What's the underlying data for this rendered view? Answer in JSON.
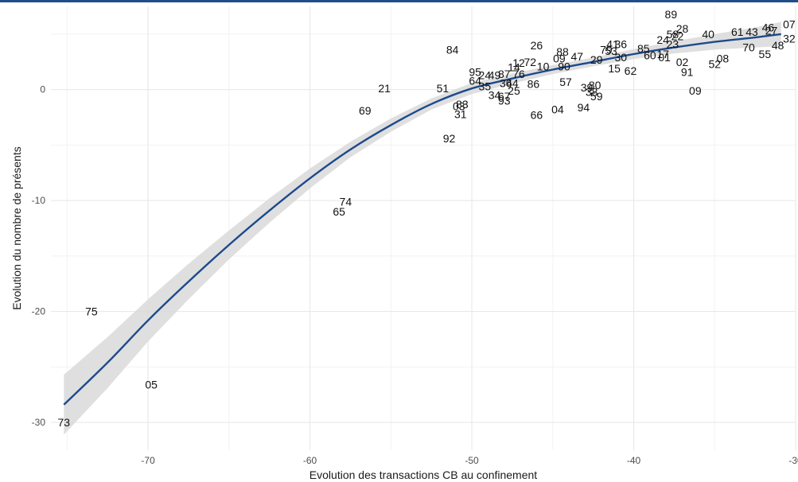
{
  "chart_data": {
    "type": "scatter",
    "title": "",
    "xlabel": "Evolution des transactions CB au confinement",
    "ylabel": "Evolution du nombre de présents",
    "xlim": [
      -76,
      -30
    ],
    "ylim": [
      -32.5,
      7.5
    ],
    "x_ticks": [
      -70,
      -60,
      -50,
      -40,
      -30
    ],
    "y_ticks": [
      0,
      -10,
      -20,
      -30
    ],
    "x_tick_labels": [
      "-70",
      "-60",
      "-50",
      "-40",
      "-30"
    ],
    "y_tick_labels": [
      "0",
      "-10",
      "-20",
      "-30"
    ],
    "grid": true,
    "legend": "none",
    "colors": {
      "line": "#1c4a8c",
      "band": "#d9d9d9",
      "grid_major": "#e6e6e6",
      "grid_minor": "#f2f2f2",
      "topbar": "#1f4e8c"
    },
    "points": [
      {
        "label": "73",
        "x": -75.2,
        "y": -30.0
      },
      {
        "label": "75",
        "x": -73.5,
        "y": -20.0
      },
      {
        "label": "05",
        "x": -69.8,
        "y": -26.6
      },
      {
        "label": "65",
        "x": -58.2,
        "y": -11.0
      },
      {
        "label": "74",
        "x": -57.8,
        "y": -10.1
      },
      {
        "label": "69",
        "x": -56.6,
        "y": -1.9
      },
      {
        "label": "21",
        "x": -55.4,
        "y": 0.1
      },
      {
        "label": "51",
        "x": -51.8,
        "y": 0.1
      },
      {
        "label": "92",
        "x": -51.4,
        "y": -4.4
      },
      {
        "label": "84",
        "x": -51.2,
        "y": 3.6
      },
      {
        "label": "31",
        "x": -50.7,
        "y": -2.2
      },
      {
        "label": "03",
        "x": -50.8,
        "y": -1.5
      },
      {
        "label": "83",
        "x": -50.6,
        "y": -1.3
      },
      {
        "label": "95",
        "x": -49.8,
        "y": 1.6
      },
      {
        "label": "64",
        "x": -49.8,
        "y": 0.8
      },
      {
        "label": "24",
        "x": -49.2,
        "y": 1.3
      },
      {
        "label": "49",
        "x": -48.6,
        "y": 1.3
      },
      {
        "label": "35",
        "x": -49.2,
        "y": 0.3
      },
      {
        "label": "34",
        "x": -48.6,
        "y": -0.5
      },
      {
        "label": "67",
        "x": -48.0,
        "y": -0.6
      },
      {
        "label": "93",
        "x": -48.0,
        "y": -1.0
      },
      {
        "label": "87",
        "x": -48.0,
        "y": 1.4
      },
      {
        "label": "36",
        "x": -47.9,
        "y": 0.6
      },
      {
        "label": "44",
        "x": -47.5,
        "y": 0.6
      },
      {
        "label": "25",
        "x": -47.4,
        "y": -0.1
      },
      {
        "label": "14",
        "x": -47.4,
        "y": 2.0
      },
      {
        "label": "12",
        "x": -47.1,
        "y": 2.4
      },
      {
        "label": "76",
        "x": -47.1,
        "y": 1.4
      },
      {
        "label": "72",
        "x": -46.4,
        "y": 2.5
      },
      {
        "label": "86",
        "x": -46.2,
        "y": 0.5
      },
      {
        "label": "66",
        "x": -46.0,
        "y": -2.3
      },
      {
        "label": "10",
        "x": -45.6,
        "y": 2.1
      },
      {
        "label": "26",
        "x": -46.0,
        "y": 4.0
      },
      {
        "label": "04",
        "x": -44.7,
        "y": -1.8
      },
      {
        "label": "09",
        "x": -44.6,
        "y": 2.8
      },
      {
        "label": "88",
        "x": -44.4,
        "y": 3.4
      },
      {
        "label": "90",
        "x": -44.3,
        "y": 2.1
      },
      {
        "label": "57",
        "x": -44.2,
        "y": 0.7
      },
      {
        "label": "47",
        "x": -43.5,
        "y": 3.0
      },
      {
        "label": "94",
        "x": -43.1,
        "y": -1.6
      },
      {
        "label": "39",
        "x": -42.9,
        "y": 0.2
      },
      {
        "label": "80",
        "x": -42.4,
        "y": 0.4
      },
      {
        "label": "38",
        "x": -42.6,
        "y": -0.2
      },
      {
        "label": "59",
        "x": -42.3,
        "y": -0.6
      },
      {
        "label": "29",
        "x": -42.3,
        "y": 2.7
      },
      {
        "label": "79",
        "x": -41.7,
        "y": 3.6
      },
      {
        "label": "53",
        "x": -41.4,
        "y": 3.5
      },
      {
        "label": "41",
        "x": -41.3,
        "y": 4.1
      },
      {
        "label": "30",
        "x": -40.8,
        "y": 2.9
      },
      {
        "label": "15",
        "x": -41.2,
        "y": 1.9
      },
      {
        "label": "36b",
        "x": -40.8,
        "y": 4.1
      },
      {
        "label": "62",
        "x": -40.2,
        "y": 1.7
      },
      {
        "label": "85",
        "x": -39.4,
        "y": 3.7
      },
      {
        "label": "60",
        "x": -39.0,
        "y": 3.1
      },
      {
        "label": "17",
        "x": -38.2,
        "y": 3.2
      },
      {
        "label": "89",
        "x": -37.7,
        "y": 6.8
      },
      {
        "label": "24b",
        "x": -38.2,
        "y": 4.5
      },
      {
        "label": "58",
        "x": -37.6,
        "y": 5.0
      },
      {
        "label": "28",
        "x": -37.0,
        "y": 5.5
      },
      {
        "label": "22",
        "x": -37.3,
        "y": 4.8
      },
      {
        "label": "23",
        "x": -37.6,
        "y": 4.1
      },
      {
        "label": "01",
        "x": -38.1,
        "y": 2.9
      },
      {
        "label": "02",
        "x": -37.0,
        "y": 2.5
      },
      {
        "label": "91",
        "x": -36.7,
        "y": 1.6
      },
      {
        "label": "09b",
        "x": -36.2,
        "y": -0.1
      },
      {
        "label": "40",
        "x": -35.4,
        "y": 5.0
      },
      {
        "label": "52",
        "x": -35.0,
        "y": 2.3
      },
      {
        "label": "08",
        "x": -34.5,
        "y": 2.8
      },
      {
        "label": "61",
        "x": -33.6,
        "y": 5.2
      },
      {
        "label": "43",
        "x": -32.7,
        "y": 5.2
      },
      {
        "label": "70",
        "x": -32.9,
        "y": 3.8
      },
      {
        "label": "55",
        "x": -31.9,
        "y": 3.2
      },
      {
        "label": "48",
        "x": -31.1,
        "y": 4.0
      },
      {
        "label": "46",
        "x": -31.7,
        "y": 5.6
      },
      {
        "label": "27",
        "x": -31.5,
        "y": 5.3
      },
      {
        "label": "07",
        "x": -30.4,
        "y": 5.9
      },
      {
        "label": "32",
        "x": -30.4,
        "y": 4.6
      }
    ],
    "smooth": [
      {
        "x": -75.2,
        "y": -28.4
      },
      {
        "x": -72.5,
        "y": -24.6
      },
      {
        "x": -70.0,
        "y": -20.8
      },
      {
        "x": -67.5,
        "y": -17.3
      },
      {
        "x": -65.0,
        "y": -14.0
      },
      {
        "x": -62.5,
        "y": -10.9
      },
      {
        "x": -60.0,
        "y": -8.0
      },
      {
        "x": -57.5,
        "y": -5.4
      },
      {
        "x": -55.0,
        "y": -3.2
      },
      {
        "x": -52.5,
        "y": -1.3
      },
      {
        "x": -50.0,
        "y": 0.1
      },
      {
        "x": -47.5,
        "y": 1.0
      },
      {
        "x": -45.0,
        "y": 1.8
      },
      {
        "x": -42.5,
        "y": 2.5
      },
      {
        "x": -40.0,
        "y": 3.2
      },
      {
        "x": -37.5,
        "y": 3.8
      },
      {
        "x": -35.0,
        "y": 4.3
      },
      {
        "x": -32.5,
        "y": 4.7
      },
      {
        "x": -30.9,
        "y": 5.0
      }
    ],
    "band_halfwidth": [
      2.7,
      2.3,
      1.9,
      1.6,
      1.3,
      1.1,
      0.9,
      0.7,
      0.6,
      0.5,
      0.5,
      0.45,
      0.4,
      0.4,
      0.45,
      0.55,
      0.7,
      0.9,
      1.1
    ]
  }
}
